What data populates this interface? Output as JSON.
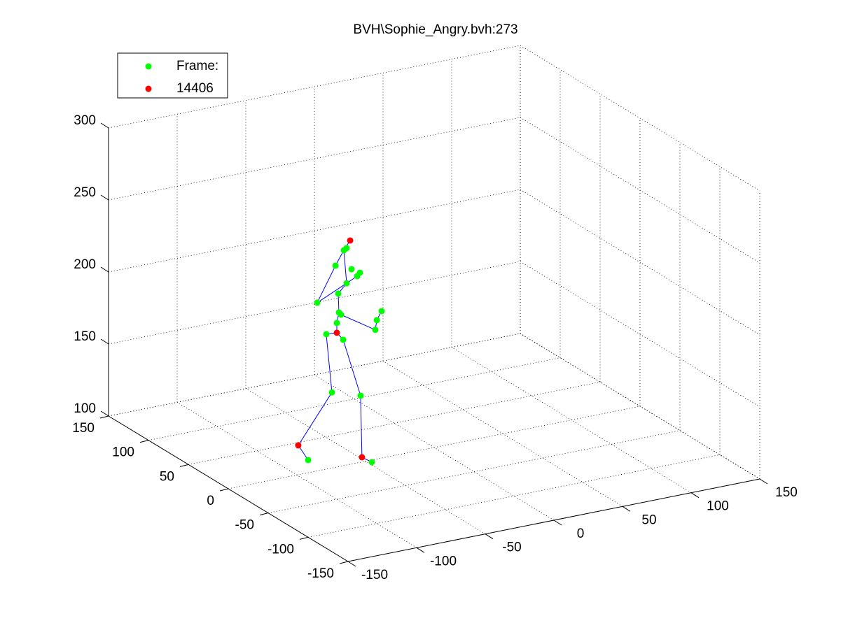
{
  "chart_data": {
    "type": "scatter3d",
    "title": "BVH\\Sophie_Angry.bvh:273",
    "xlim": [
      -150,
      150
    ],
    "ylim": [
      -150,
      150
    ],
    "zlim": [
      100,
      300
    ],
    "xticks": [
      -150,
      -100,
      -50,
      0,
      50,
      100,
      150
    ],
    "yticks": [
      -150,
      -100,
      -50,
      0,
      50,
      100,
      150
    ],
    "zticks": [
      100,
      150,
      200,
      250,
      300
    ],
    "grid": true,
    "legend": "upper left",
    "series": [
      {
        "name": "Frame:",
        "color": "#00ff00",
        "mode": "markers",
        "x": [
          -91.8,
          -45.4,
          -74.5,
          -53.6,
          -78.6,
          -66.3,
          -70.9,
          -69.4,
          -67.9,
          -69.9,
          -85.2,
          -71.9,
          -63.8,
          -60.2,
          -65.8,
          -63.8,
          -42.9,
          -38.3,
          -41.8,
          -56.1,
          -54.1
        ],
        "y": [
          0,
          0,
          0,
          0,
          0,
          0,
          0,
          0,
          0,
          0,
          0,
          0,
          0,
          0,
          0,
          0,
          0,
          0,
          0,
          0,
          0
        ],
        "z": [
          108.8,
          98.5,
          152.5,
          146.2,
          193.7,
          187.5,
          200,
          207,
          205.2,
          220.2,
          216.8,
          240,
          226.2,
          235.3,
          249.5,
          250.6,
          189.9,
          202,
          196.4,
          229.7,
          231.7
        ]
      },
      {
        "name": "14406",
        "color": "#ff0000",
        "mode": "markers",
        "x": [
          -99,
          -52.6,
          -70.9,
          -61.2
        ],
        "y": [
          0,
          0,
          0,
          0
        ],
        "z": [
          120.4,
          103.3,
          193.2,
          255.4
        ]
      },
      {
        "color": "#0000ff",
        "mode": "lines",
        "x": [
          -70.9,
          -78.6,
          -74.5,
          -99,
          -91.8,
          null,
          -70.9,
          -66.3,
          -53.6,
          -52.6,
          -45.4,
          null,
          -70.9,
          -70.9,
          -69.4,
          -69.9,
          -63.8,
          -65.8,
          -61.2,
          null,
          -65.8,
          -71.9,
          -85.2,
          -63.8,
          -56.1,
          -54.1,
          null,
          -67.9,
          -42.9,
          -41.8,
          -38.3
        ],
        "y": [
          0,
          0,
          0,
          0,
          0,
          null,
          0,
          0,
          0,
          0,
          0,
          null,
          0,
          0,
          0,
          0,
          0,
          0,
          0,
          null,
          0,
          0,
          0,
          0,
          0,
          0,
          null,
          0,
          0,
          0,
          0
        ],
        "z": [
          193.2,
          193.7,
          152.5,
          120.4,
          108.8,
          null,
          193.2,
          187.5,
          146.2,
          103.3,
          98.5,
          null,
          193.2,
          200,
          207,
          220.2,
          226.2,
          249.5,
          255.4,
          null,
          249.5,
          240,
          216.8,
          226.2,
          229.7,
          231.7,
          null,
          205.2,
          189.9,
          196.4,
          202
        ]
      }
    ]
  }
}
